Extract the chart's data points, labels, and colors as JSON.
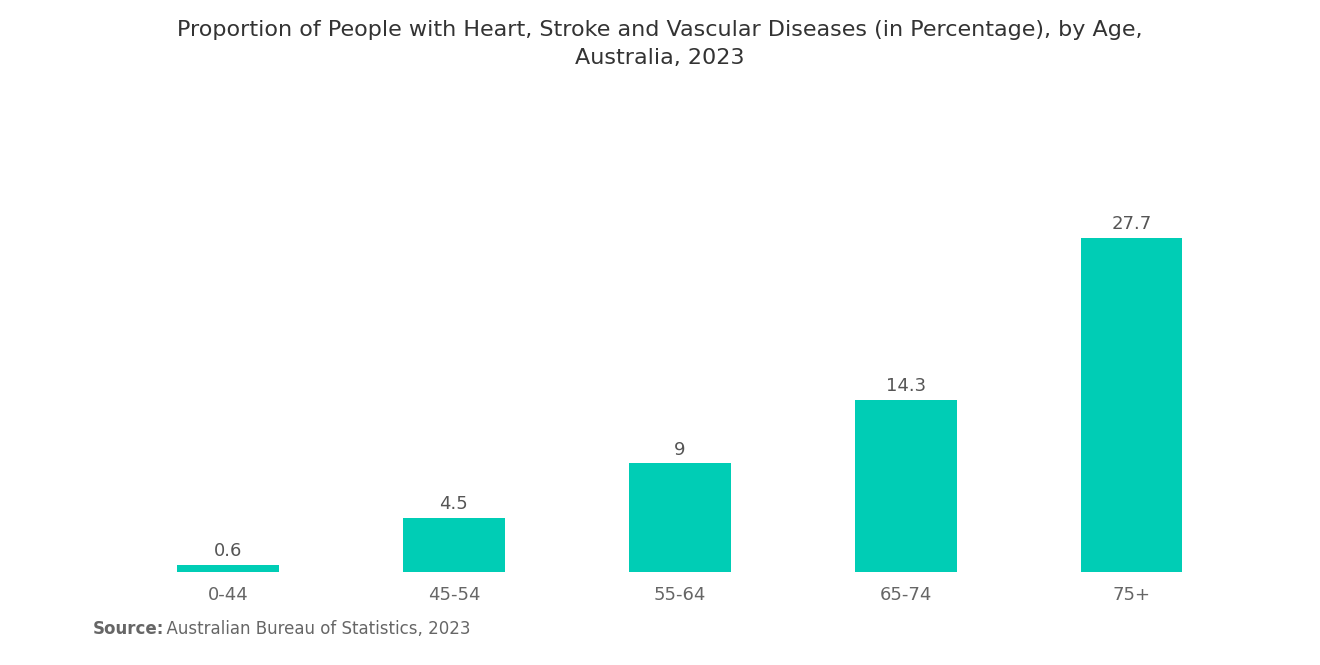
{
  "title_line1": "Proportion of People with Heart, Stroke and Vascular Diseases (in Percentage), by Age,",
  "title_line2": "Australia, 2023",
  "categories": [
    "0-44",
    "45-54",
    "55-64",
    "65-74",
    "75+"
  ],
  "values": [
    0.6,
    4.5,
    9,
    14.3,
    27.7
  ],
  "bar_color": "#00CDB5",
  "background_color": "#ffffff",
  "source_bold": "Source:",
  "source_normal": "  Australian Bureau of Statistics, 2023",
  "title_fontsize": 16,
  "label_fontsize": 13,
  "tick_fontsize": 13,
  "source_fontsize": 12,
  "ylim": [
    0,
    32
  ],
  "bar_width": 0.45
}
